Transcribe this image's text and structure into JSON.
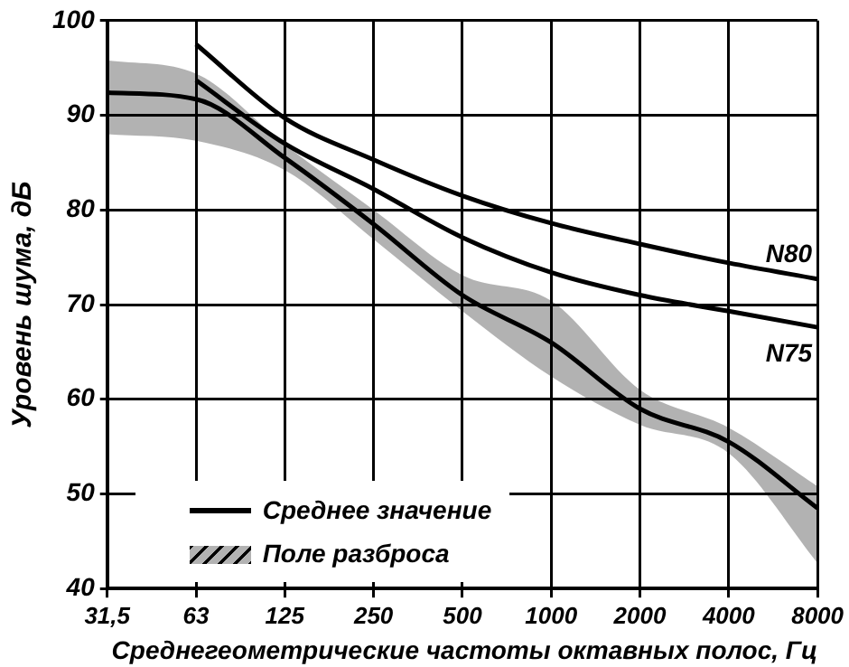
{
  "chart_data": {
    "type": "line",
    "ylabel": "Уровень шума, дБ",
    "xlabel": "Среднегеометрические частоты октавных полос, Гц",
    "categories": [
      "31,5",
      "63",
      "125",
      "250",
      "500",
      "1000",
      "2000",
      "4000",
      "8000"
    ],
    "ylim": [
      40,
      100
    ],
    "yticks": [
      40,
      50,
      60,
      70,
      80,
      90,
      100
    ],
    "grid": true,
    "legend": "bottom left",
    "marker": "none",
    "line_style": "solid",
    "series": [
      {
        "color": "#000000",
        "values": [
          null,
          97.5,
          89.7,
          85.3,
          81.5,
          78.6,
          76.4,
          74.4,
          72.7
        ]
      },
      {
        "color": "#000000",
        "values": [
          null,
          93.7,
          87,
          82.2,
          77.1,
          73.4,
          71,
          69.3,
          67.6
        ]
      },
      {
        "name": "Среднее значение",
        "color": "#000000",
        "values": [
          92.4,
          91.7,
          85.5,
          78.5,
          71,
          66,
          59,
          55.5,
          48.5
        ],
        "lower": [
          88,
          87.3,
          84.2,
          76.9,
          69.3,
          62.4,
          57.3,
          54.3,
          42.7
        ],
        "upper": [
          95.8,
          94.4,
          86.9,
          80,
          73.1,
          70.4,
          61,
          57,
          50.8
        ]
      }
    ],
    "annotations": [
      {
        "text": "N80",
        "x": "8000",
        "y": 72.7
      },
      {
        "text": "N75",
        "x": "8000",
        "y": 67.6
      },
      "Поле разброса"
    ]
  }
}
